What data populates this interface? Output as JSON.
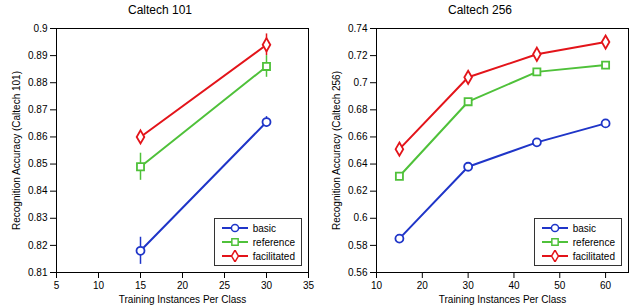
{
  "chart_data": [
    {
      "type": "line",
      "title": "Caltech 101",
      "x_label": "Training Instances Per Class",
      "y_label": "Recognition Accuracy (Caltech 101)",
      "x": [
        15,
        30
      ],
      "series": [
        {
          "name": "basic",
          "color": "#1f35c8",
          "marker": "circle",
          "values": [
            0.818,
            0.8655
          ],
          "errors": [
            0.005,
            0.002
          ]
        },
        {
          "name": "reference",
          "color": "#4fc13a",
          "marker": "square",
          "values": [
            0.849,
            0.886
          ],
          "errors": [
            0.005,
            0.004
          ]
        },
        {
          "name": "facilitated",
          "color": "#e3141a",
          "marker": "diamond",
          "values": [
            0.86,
            0.894
          ],
          "errors": [
            0.001,
            0.004
          ]
        }
      ],
      "xlim": [
        5,
        35
      ],
      "xticks": [
        5,
        10,
        15,
        20,
        25,
        30,
        35
      ],
      "ylim": [
        0.81,
        0.9
      ],
      "yticks": [
        0.81,
        0.82,
        0.83,
        0.84,
        0.85,
        0.86,
        0.87,
        0.88,
        0.89,
        0.9
      ],
      "grid": false,
      "legend": "southeast"
    },
    {
      "type": "line",
      "title": "Caltech 256",
      "x_label": "Training Instances Per Class",
      "y_label": "Recognition Accuracy (Caltech 256)",
      "x": [
        15,
        30,
        45,
        60
      ],
      "series": [
        {
          "name": "basic",
          "color": "#1f35c8",
          "marker": "circle",
          "values": [
            0.585,
            0.638,
            0.656,
            0.67
          ],
          "errors": [
            0.001,
            0.001,
            0.001,
            0.002
          ]
        },
        {
          "name": "reference",
          "color": "#4fc13a",
          "marker": "square",
          "values": [
            0.631,
            0.686,
            0.708,
            0.713
          ],
          "errors": [
            0.001,
            0.001,
            0.001,
            0.001
          ]
        },
        {
          "name": "facilitated",
          "color": "#e3141a",
          "marker": "diamond",
          "values": [
            0.651,
            0.704,
            0.721,
            0.73
          ],
          "errors": [
            0.002,
            0.002,
            0.002,
            0.002
          ]
        }
      ],
      "xlim": [
        10,
        65
      ],
      "xticks": [
        10,
        20,
        30,
        40,
        50,
        60
      ],
      "ylim": [
        0.56,
        0.74
      ],
      "yticks": [
        0.56,
        0.58,
        0.6,
        0.62,
        0.64,
        0.66,
        0.68,
        0.7,
        0.72,
        0.74
      ],
      "grid": false,
      "legend": "southeast"
    }
  ]
}
